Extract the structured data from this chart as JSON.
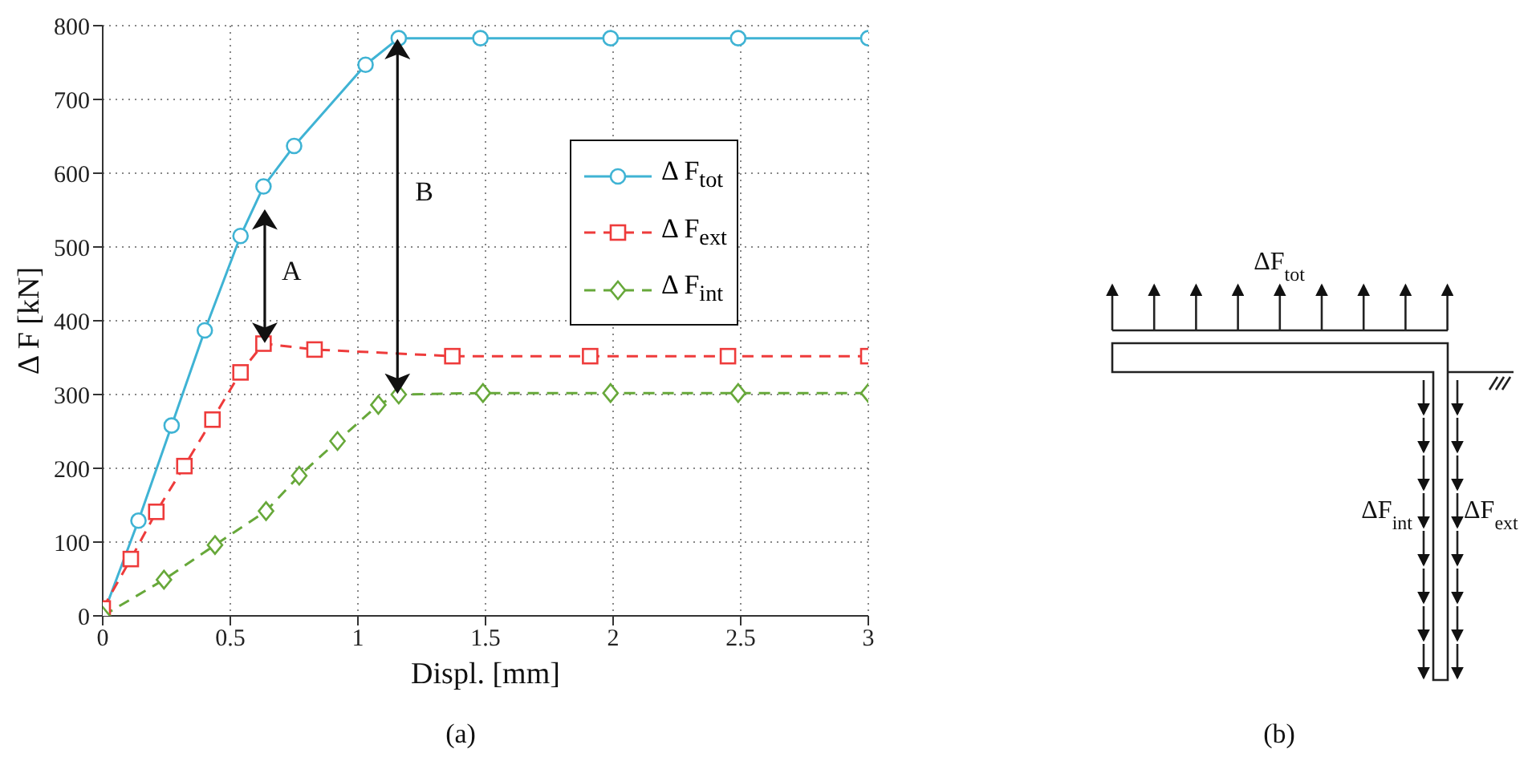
{
  "chart_data": {
    "type": "line",
    "xlabel": "Displ. [mm]",
    "ylabel": "Δ F [kN]",
    "xlim": [
      0,
      3
    ],
    "xticks": [
      0,
      0.5,
      1,
      1.5,
      2,
      2.5,
      3
    ],
    "ylim": [
      0,
      800
    ],
    "yticks": [
      0,
      100,
      200,
      300,
      400,
      500,
      600,
      700,
      800
    ],
    "grid": true,
    "legend": "right",
    "series": [
      {
        "name": "Δ F$_{tot}$",
        "color": "#3fb3d4",
        "marker": "circle",
        "line_style": "solid",
        "x": [
          0,
          0.14,
          0.27,
          0.4,
          0.54,
          0.63,
          0.75,
          1.03,
          1.16,
          1.48,
          1.99,
          2.49,
          3
        ],
        "values": [
          0,
          129,
          258,
          387,
          515,
          582,
          637,
          747,
          783,
          783,
          783,
          783,
          783
        ]
      },
      {
        "name": "Δ F$_{ext}$",
        "color": "#ee3b3b",
        "marker": "square",
        "line_style": "dashed",
        "x": [
          0,
          0.11,
          0.21,
          0.32,
          0.43,
          0.54,
          0.63,
          0.83,
          1.37,
          1.91,
          2.45,
          3
        ],
        "values": [
          10,
          77,
          141,
          203,
          266,
          330,
          369,
          361,
          352,
          352,
          352,
          352
        ]
      },
      {
        "name": "Δ F$_{int}$",
        "color": "#67a83a",
        "marker": "diamond",
        "line_style": "dashed",
        "x": [
          0,
          0.24,
          0.44,
          0.64,
          0.77,
          0.92,
          1.08,
          1.16,
          1.49,
          1.99,
          2.49,
          3
        ],
        "values": [
          0,
          49,
          96,
          142,
          190,
          237,
          286,
          300,
          302,
          302,
          302,
          302
        ]
      }
    ],
    "annotations": [
      "A",
      "B",
      "(a)",
      "(b)",
      "ΔF$_{tot}$",
      "ΔF$_{int}$",
      "ΔF$_{ext}$"
    ]
  }
}
